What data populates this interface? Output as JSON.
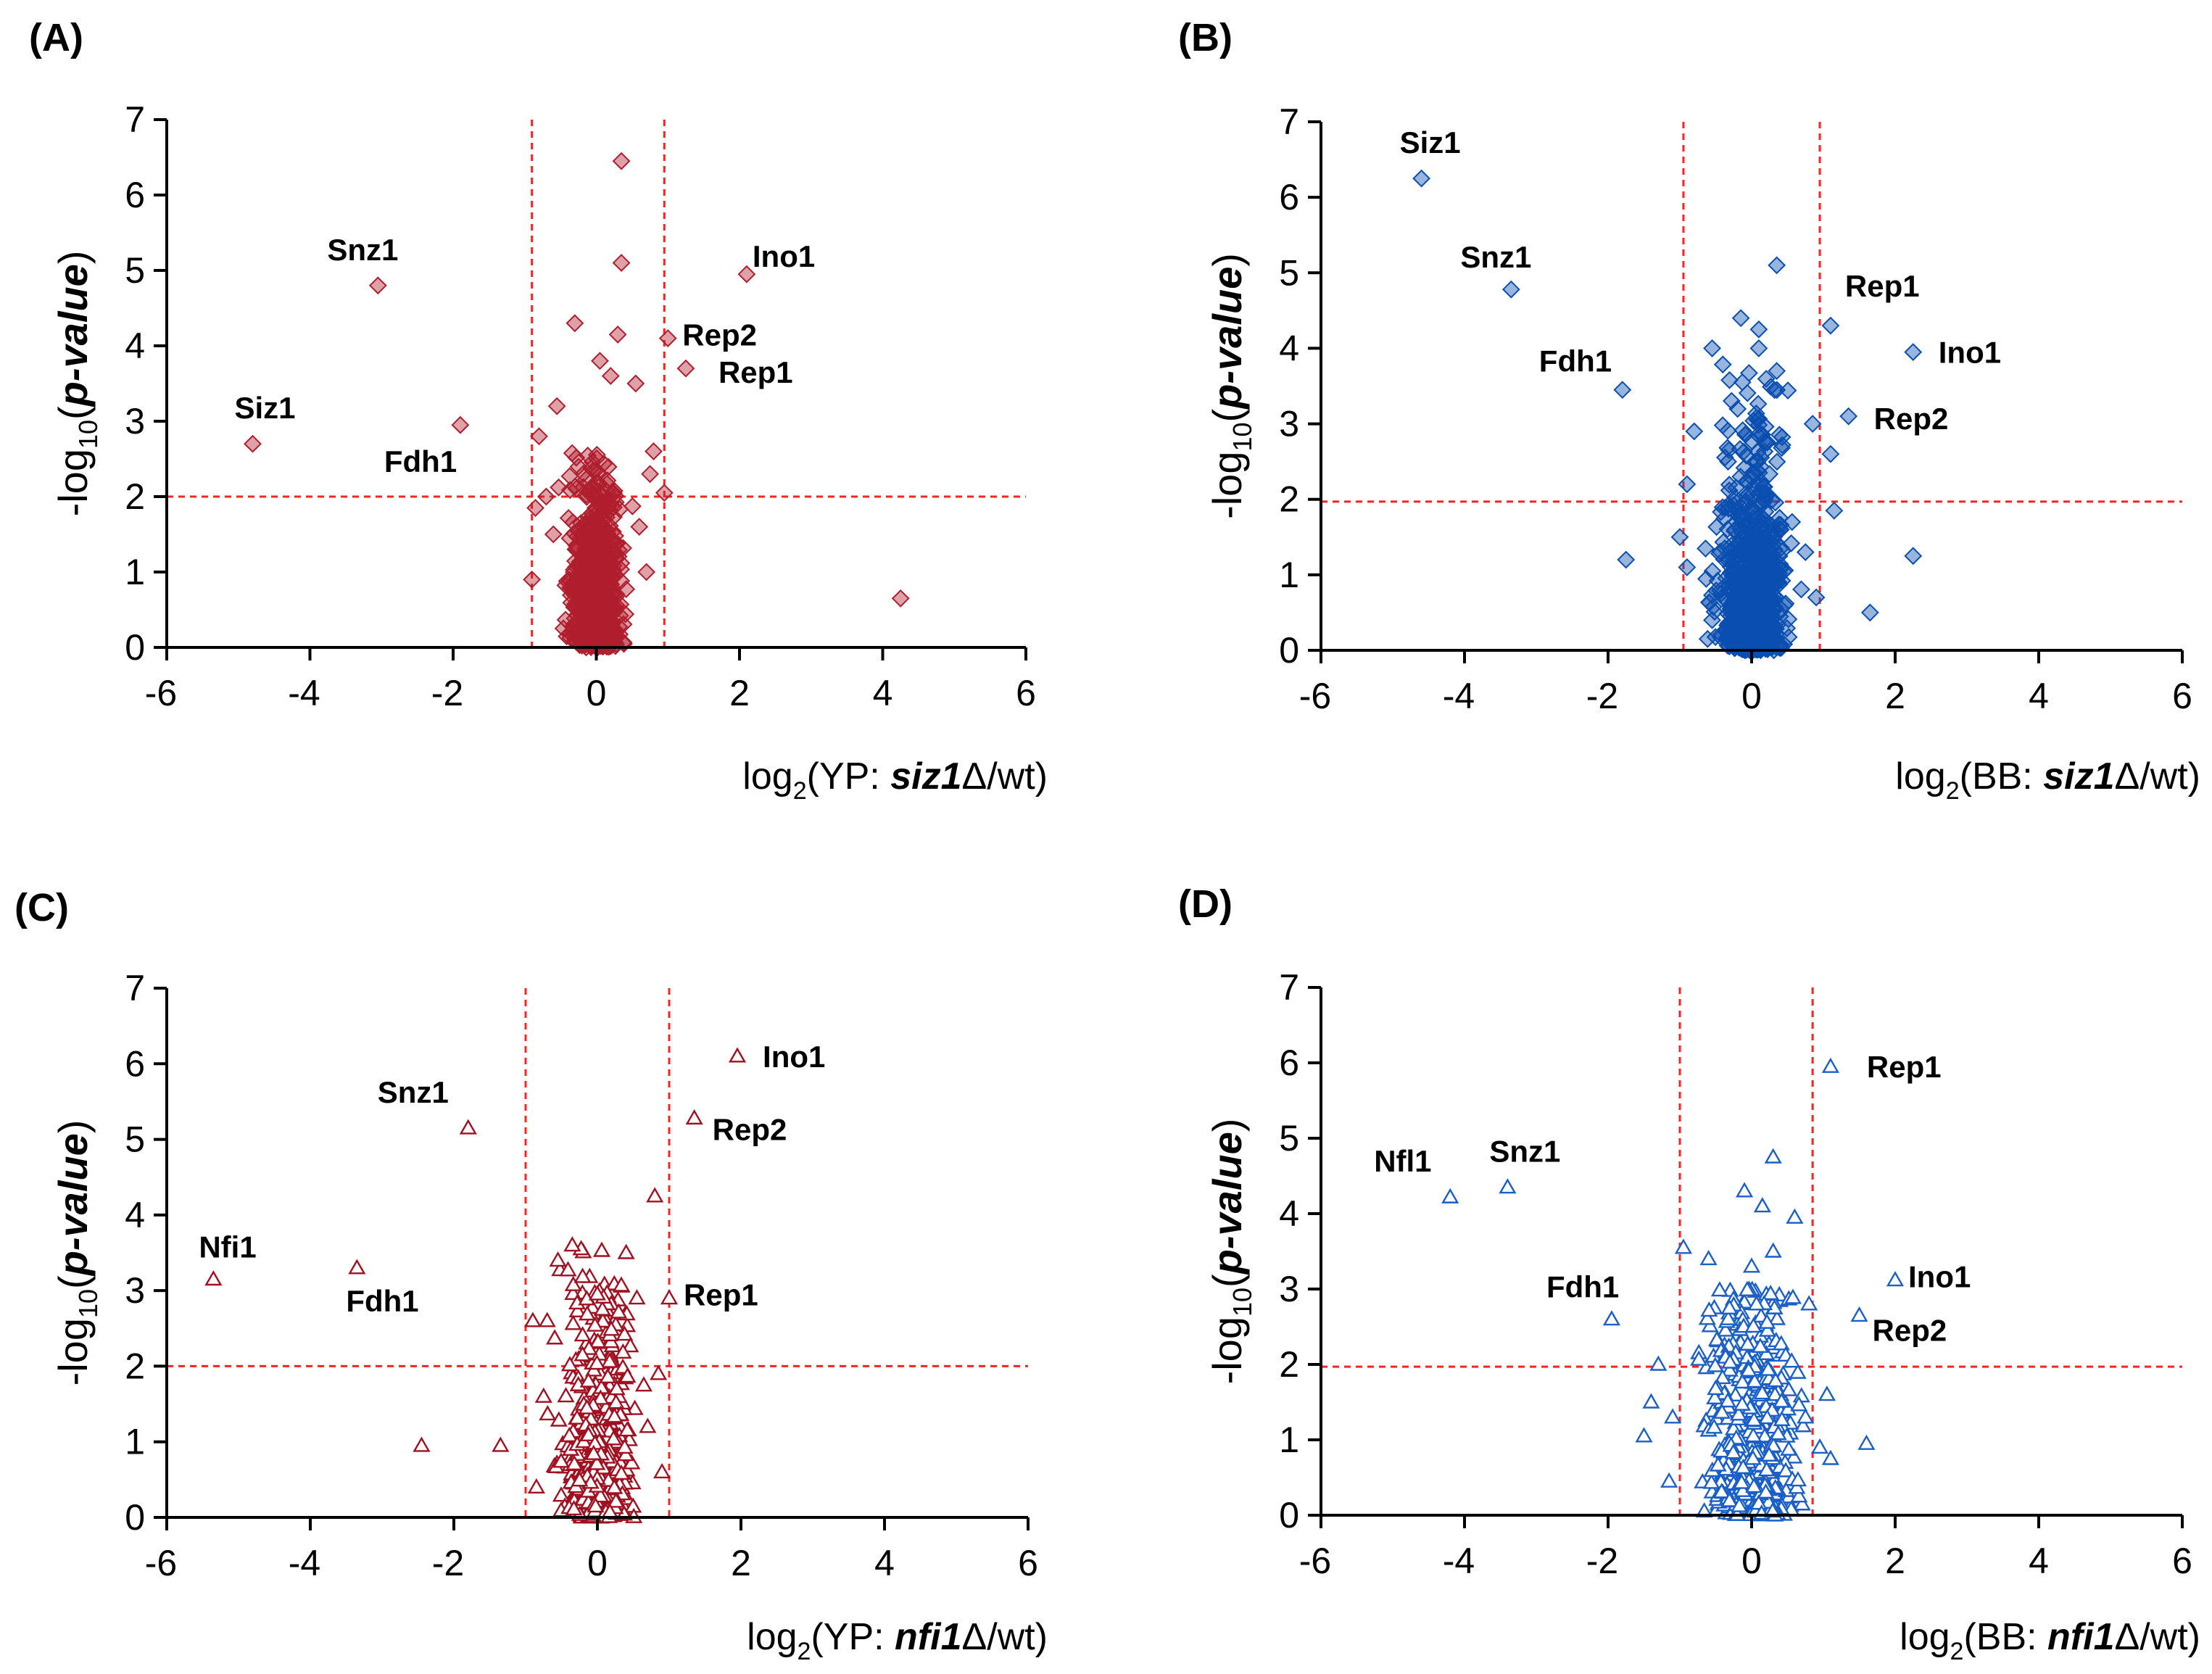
{
  "chart_data": [
    {
      "type": "scatter",
      "panel_label": "(A)",
      "marker": "diamond",
      "color": "#b01e2e",
      "xlabel_parts": [
        "log",
        "2",
        "(YP: ",
        "siz1",
        "Δ",
        "/wt)"
      ],
      "ylabel_parts": [
        "-log",
        "10",
        "(",
        "p-value",
        ")"
      ],
      "xlim": [
        -6,
        6
      ],
      "ylim": [
        0,
        7
      ],
      "xticks": [
        "-6",
        "-4",
        "-2",
        "0",
        "2",
        "4",
        "6"
      ],
      "yticks": [
        "0",
        "1",
        "2",
        "3",
        "4",
        "5",
        "6",
        "7"
      ],
      "thresholds": {
        "x": [
          -0.9,
          0.95
        ],
        "y": 2.0
      },
      "cloud": {
        "count": 700,
        "x_sd": 0.16,
        "y_rate": 1.05,
        "y_max": 2.6
      },
      "points": [
        {
          "x": 0.35,
          "y": 6.45
        },
        {
          "x": 0.35,
          "y": 5.1
        },
        {
          "x": -0.3,
          "y": 4.3
        },
        {
          "x": 0.3,
          "y": 4.15
        },
        {
          "x": 0.05,
          "y": 3.8
        },
        {
          "x": 0.2,
          "y": 3.6
        },
        {
          "x": 0.55,
          "y": 3.5
        },
        {
          "x": -0.55,
          "y": 3.2
        },
        {
          "x": -0.8,
          "y": 2.8
        },
        {
          "x": -0.7,
          "y": 2.0
        },
        {
          "x": -0.85,
          "y": 1.85
        },
        {
          "x": 0.8,
          "y": 2.6
        },
        {
          "x": 0.75,
          "y": 2.3
        },
        {
          "x": 0.95,
          "y": 2.05
        },
        {
          "x": 0.6,
          "y": 1.6
        },
        {
          "x": -0.6,
          "y": 1.5
        },
        {
          "x": 0.7,
          "y": 1.0
        },
        {
          "x": -0.9,
          "y": 0.9
        },
        {
          "x": 4.25,
          "y": 0.65
        }
      ],
      "labeled_points": [
        {
          "name": "Snz1",
          "x": -3.05,
          "y": 4.8
        },
        {
          "name": "Siz1",
          "x": -4.8,
          "y": 2.7
        },
        {
          "name": "Fdh1",
          "x": -1.9,
          "y": 2.95
        },
        {
          "name": "Ino1",
          "x": 2.1,
          "y": 4.95
        },
        {
          "name": "Rep2",
          "x": 1.0,
          "y": 4.1
        },
        {
          "name": "Rep1",
          "x": 1.25,
          "y": 3.7
        }
      ]
    },
    {
      "type": "scatter",
      "panel_label": "(B)",
      "marker": "diamond",
      "color": "#0a4fb0",
      "xlabel_parts": [
        "log",
        "2",
        "(BB: ",
        "siz1",
        "Δ",
        "/wt)"
      ],
      "ylabel_parts": [
        "-log",
        "10",
        "(",
        "p-value",
        ")"
      ],
      "xlim": [
        -6,
        6
      ],
      "ylim": [
        0,
        7
      ],
      "xticks": [
        "-6",
        "-4",
        "-2",
        "0",
        "2",
        "4",
        "6"
      ],
      "yticks": [
        "0",
        "1",
        "2",
        "3",
        "4",
        "5",
        "6",
        "7"
      ],
      "thresholds": {
        "x": [
          -0.95,
          0.95
        ],
        "y": 1.97
      },
      "cloud": {
        "count": 800,
        "x_sd": 0.2,
        "y_rate": 0.9,
        "y_max": 3.8
      },
      "points": [
        {
          "x": 0.35,
          "y": 5.1
        },
        {
          "x": -0.15,
          "y": 4.4
        },
        {
          "x": 0.1,
          "y": 4.25
        },
        {
          "x": -0.55,
          "y": 4.0
        },
        {
          "x": 0.1,
          "y": 4.0
        },
        {
          "x": 0.35,
          "y": 3.7
        },
        {
          "x": 0.85,
          "y": 3.0
        },
        {
          "x": 1.1,
          "y": 2.6
        },
        {
          "x": 1.15,
          "y": 1.85
        },
        {
          "x": -0.8,
          "y": 2.9
        },
        {
          "x": -0.9,
          "y": 2.2
        },
        {
          "x": -1.0,
          "y": 1.5
        },
        {
          "x": -0.9,
          "y": 1.1
        },
        {
          "x": -1.75,
          "y": 1.2
        },
        {
          "x": -0.55,
          "y": 0.4
        },
        {
          "x": 0.75,
          "y": 1.3
        },
        {
          "x": 0.9,
          "y": 0.7
        },
        {
          "x": 2.25,
          "y": 1.25
        },
        {
          "x": 1.65,
          "y": 0.5
        }
      ],
      "labeled_points": [
        {
          "name": "Siz1",
          "x": -4.6,
          "y": 6.25
        },
        {
          "name": "Snz1",
          "x": -3.35,
          "y": 4.78
        },
        {
          "name": "Fdh1",
          "x": -1.8,
          "y": 3.45
        },
        {
          "name": "Rep1",
          "x": 1.1,
          "y": 4.3
        },
        {
          "name": "Ino1",
          "x": 2.25,
          "y": 3.95
        },
        {
          "name": "Rep2",
          "x": 1.35,
          "y": 3.1
        }
      ]
    },
    {
      "type": "scatter",
      "panel_label": "(C)",
      "marker": "triangle",
      "color": "#a01020",
      "xlabel_parts": [
        "log",
        "2",
        "(YP: ",
        "nfi1",
        "Δ",
        "/wt)"
      ],
      "ylabel_parts": [
        "-log",
        "10",
        "(",
        "p-value",
        ")"
      ],
      "xlim": [
        -6,
        6
      ],
      "ylim": [
        0,
        7
      ],
      "xticks": [
        "-6",
        "-4",
        "-2",
        "0",
        "2",
        "4",
        "6"
      ],
      "yticks": [
        "0",
        "1",
        "2",
        "3",
        "4",
        "5",
        "6",
        "7"
      ],
      "thresholds": {
        "x": [
          -1.0,
          1.0
        ],
        "y": 2.0
      },
      "cloud": {
        "count": 750,
        "x_sd": 0.18,
        "y_rate": 1.0,
        "y_max": 3.6
      },
      "points": [
        {
          "x": 0.8,
          "y": 4.25
        },
        {
          "x": -0.35,
          "y": 3.6
        },
        {
          "x": 0.4,
          "y": 3.5
        },
        {
          "x": -0.55,
          "y": 3.4
        },
        {
          "x": -0.9,
          "y": 2.6
        },
        {
          "x": -0.7,
          "y": 2.6
        },
        {
          "x": 0.55,
          "y": 2.9
        },
        {
          "x": 0.85,
          "y": 1.9
        },
        {
          "x": -0.75,
          "y": 1.6
        },
        {
          "x": 0.7,
          "y": 1.2
        },
        {
          "x": -1.35,
          "y": 0.95
        },
        {
          "x": -2.45,
          "y": 0.95
        },
        {
          "x": -0.85,
          "y": 0.4
        },
        {
          "x": 0.9,
          "y": 0.6
        }
      ],
      "labeled_points": [
        {
          "name": "Ino1",
          "x": 1.95,
          "y": 6.1
        },
        {
          "name": "Rep2",
          "x": 1.35,
          "y": 5.28
        },
        {
          "name": "Snz1",
          "x": -1.8,
          "y": 5.15
        },
        {
          "name": "Nfi1",
          "x": -5.35,
          "y": 3.15
        },
        {
          "name": "Fdh1",
          "x": -3.35,
          "y": 3.3
        },
        {
          "name": "Rep1",
          "x": 1.0,
          "y": 2.9
        }
      ]
    },
    {
      "type": "scatter",
      "panel_label": "(D)",
      "marker": "triangle",
      "color": "#1a5fc8",
      "xlabel_parts": [
        "log",
        "2",
        "(BB: ",
        "nfi1",
        "Δ",
        "/wt)"
      ],
      "ylabel_parts": [
        "-log",
        "10",
        "(",
        "p-value",
        ")"
      ],
      "xlim": [
        -6,
        6
      ],
      "ylim": [
        0,
        7
      ],
      "xticks": [
        "-6",
        "-4",
        "-2",
        "0",
        "2",
        "4",
        "6"
      ],
      "yticks": [
        "0",
        "1",
        "2",
        "3",
        "4",
        "5",
        "6",
        "7"
      ],
      "thresholds": {
        "x": [
          -1.0,
          0.85
        ],
        "y": 1.97
      },
      "cloud": {
        "count": 550,
        "x_sd": 0.26,
        "y_rate": 0.75,
        "y_max": 3.0
      },
      "points": [
        {
          "x": 0.3,
          "y": 4.75
        },
        {
          "x": -0.1,
          "y": 4.3
        },
        {
          "x": 0.15,
          "y": 4.1
        },
        {
          "x": 0.6,
          "y": 3.95
        },
        {
          "x": -0.95,
          "y": 3.55
        },
        {
          "x": 0.3,
          "y": 3.5
        },
        {
          "x": 0.0,
          "y": 3.3
        },
        {
          "x": -0.6,
          "y": 3.4
        },
        {
          "x": 0.8,
          "y": 2.8
        },
        {
          "x": -1.3,
          "y": 2.0
        },
        {
          "x": -1.4,
          "y": 1.5
        },
        {
          "x": -1.1,
          "y": 1.3
        },
        {
          "x": -1.5,
          "y": 1.05
        },
        {
          "x": -1.15,
          "y": 0.45
        },
        {
          "x": 0.75,
          "y": 1.3
        },
        {
          "x": 0.95,
          "y": 0.9
        },
        {
          "x": 1.1,
          "y": 0.75
        },
        {
          "x": 1.05,
          "y": 1.6
        },
        {
          "x": 1.6,
          "y": 0.95
        }
      ],
      "labeled_points": [
        {
          "name": "Rep1",
          "x": 1.1,
          "y": 5.95
        },
        {
          "name": "Nfl1",
          "x": -4.2,
          "y": 4.22
        },
        {
          "name": "Snz1",
          "x": -3.4,
          "y": 4.35
        },
        {
          "name": "Ino1",
          "x": 2.0,
          "y": 3.12
        },
        {
          "name": "Rep2",
          "x": 1.5,
          "y": 2.65
        },
        {
          "name": "Fdh1",
          "x": -1.95,
          "y": 2.6
        }
      ]
    }
  ]
}
